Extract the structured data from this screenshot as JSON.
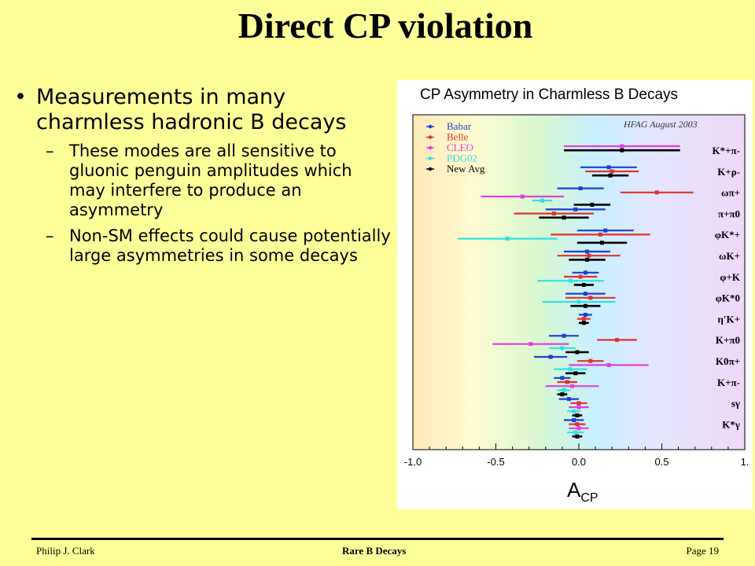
{
  "slide": {
    "title": "Direct CP violation",
    "bullets": [
      {
        "text": "Measurements in many charmless hadronic B decays"
      },
      {
        "text": "These modes are all sensitive to gluonic penguin amplitudes which may interfere to produce an asymmetry"
      },
      {
        "text": "Non-SM effects could cause potentially large asymmetries in some decays"
      }
    ]
  },
  "footer": {
    "author": "Philip J. Clark",
    "topic": "Rare B Decays",
    "page": "Page 19"
  },
  "chart_data": {
    "type": "scatter",
    "title": "CP Asymmetry in Charmless B Decays",
    "annotation": "HFAG August 2003",
    "xlabel_main": "A",
    "xlabel_sub": "CP",
    "xlim": [
      -1.0,
      1.0
    ],
    "xticks": [
      "-1.0",
      "-0.5",
      "0.0",
      "0.5",
      "1."
    ],
    "colors": {
      "Babar": "#1f3fcf",
      "Belle": "#e03030",
      "CLEO": "#e040e0",
      "PDG02": "#30e0e0",
      "New Avg": "#000000"
    },
    "legend": [
      "Babar",
      "Belle",
      "CLEO",
      "PDG02",
      "New Avg"
    ],
    "series_order": [
      "Babar",
      "Belle",
      "CLEO",
      "PDG02",
      "New Avg"
    ],
    "modes": [
      {
        "label": "K*+π-",
        "points": {
          "CLEO": [
            0.26,
            0.35
          ],
          "New Avg": [
            0.26,
            0.35
          ]
        }
      },
      {
        "label": "K+ρ-",
        "points": {
          "Babar": [
            0.18,
            0.17
          ],
          "Belle": [
            0.2,
            0.16
          ],
          "New Avg": [
            0.19,
            0.11
          ]
        }
      },
      {
        "label": "ωπ+",
        "points": {
          "Babar": [
            0.01,
            0.14
          ],
          "Belle": [
            0.47,
            0.22
          ],
          "CLEO": [
            -0.34,
            0.25
          ],
          "PDG02": [
            -0.22,
            0.06
          ],
          "New Avg": [
            0.08,
            0.11
          ]
        }
      },
      {
        "label": "π+π0",
        "points": {
          "Babar": [
            -0.02,
            0.18
          ],
          "Belle": [
            -0.15,
            0.24
          ],
          "New Avg": [
            -0.09,
            0.15
          ]
        }
      },
      {
        "label": "φK*+",
        "points": {
          "Babar": [
            0.16,
            0.17
          ],
          "Belle": [
            0.13,
            0.3
          ],
          "PDG02": [
            -0.43,
            0.3
          ],
          "New Avg": [
            0.14,
            0.15
          ]
        }
      },
      {
        "label": "ωK+",
        "points": {
          "Babar": [
            0.05,
            0.14
          ],
          "Belle": [
            0.06,
            0.19
          ],
          "New Avg": [
            0.05,
            0.11
          ]
        }
      },
      {
        "label": "φ+K",
        "points": {
          "Babar": [
            0.04,
            0.08
          ],
          "Belle": [
            0.01,
            0.1
          ],
          "PDG02": [
            -0.05,
            0.2
          ],
          "New Avg": [
            0.03,
            0.06
          ]
        }
      },
      {
        "label": "φK*0",
        "points": {
          "Babar": [
            0.04,
            0.12
          ],
          "Belle": [
            0.07,
            0.15
          ],
          "PDG02": [
            0.0,
            0.22
          ],
          "New Avg": [
            0.04,
            0.09
          ]
        }
      },
      {
        "label": "η′K+",
        "points": {
          "Babar": [
            0.04,
            0.04
          ],
          "Belle": [
            0.03,
            0.04
          ],
          "New Avg": [
            0.03,
            0.03
          ]
        }
      },
      {
        "label": "K+π0",
        "points": {
          "Babar": [
            -0.09,
            0.09
          ],
          "Belle": [
            0.23,
            0.12
          ],
          "CLEO": [
            -0.29,
            0.23
          ],
          "PDG02": [
            -0.1,
            0.08
          ],
          "New Avg": [
            -0.01,
            0.07
          ]
        }
      },
      {
        "label": "K0π+",
        "points": {
          "Babar": [
            -0.17,
            0.1
          ],
          "Belle": [
            0.07,
            0.08
          ],
          "CLEO": [
            0.18,
            0.24
          ],
          "PDG02": [
            -0.05,
            0.1
          ],
          "New Avg": [
            -0.02,
            0.06
          ]
        }
      },
      {
        "label": "K+π-",
        "points": {
          "Babar": [
            -0.1,
            0.05
          ],
          "Belle": [
            -0.07,
            0.06
          ],
          "CLEO": [
            -0.04,
            0.16
          ],
          "PDG02": [
            -0.09,
            0.04
          ],
          "New Avg": [
            -0.1,
            0.03
          ]
        }
      },
      {
        "label": "sγ",
        "points": {
          "Babar": [
            -0.06,
            0.06
          ],
          "Belle": [
            0.0,
            0.05
          ],
          "CLEO": [
            0.0,
            0.06
          ],
          "PDG02": [
            -0.03,
            0.04
          ],
          "New Avg": [
            -0.01,
            0.03
          ]
        }
      },
      {
        "label": "K*γ",
        "points": {
          "Babar": [
            -0.03,
            0.06
          ],
          "Belle": [
            -0.01,
            0.05
          ],
          "CLEO": [
            0.0,
            0.06
          ],
          "PDG02": [
            -0.02,
            0.05
          ],
          "New Avg": [
            -0.01,
            0.03
          ]
        }
      }
    ]
  }
}
